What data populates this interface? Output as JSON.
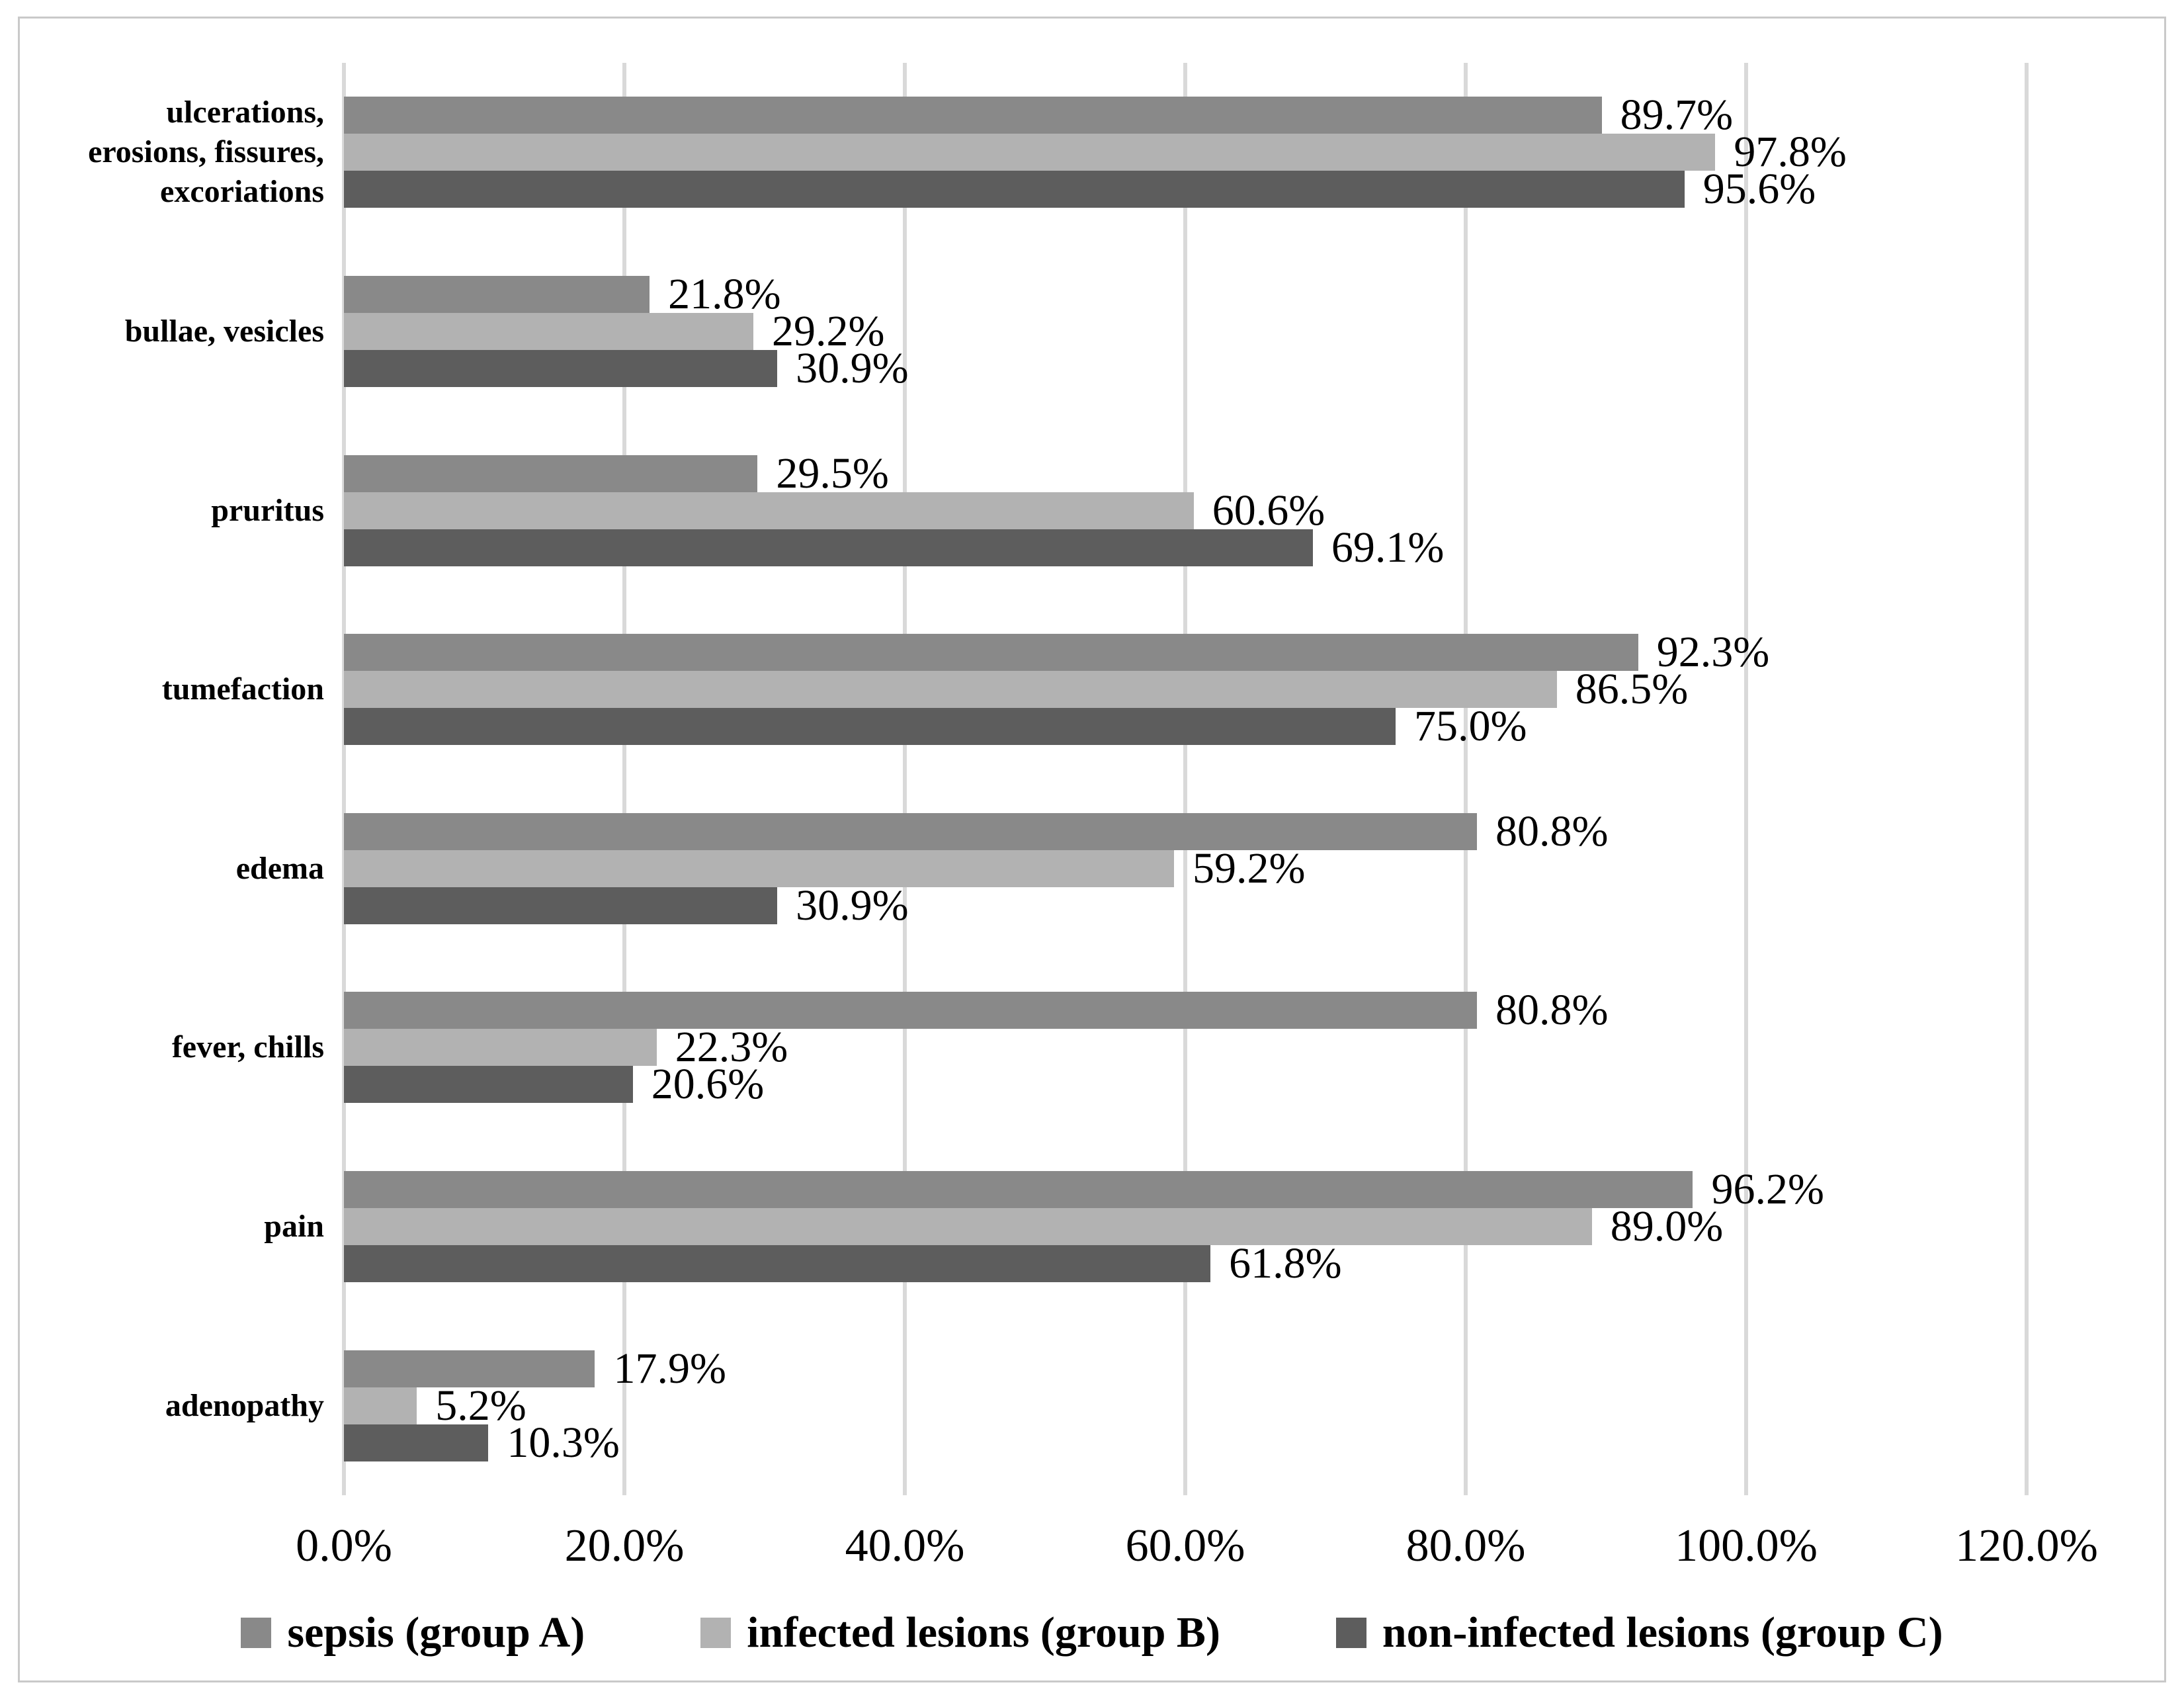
{
  "figure": {
    "background": "#ffffff",
    "border_color": "#c9c9c9"
  },
  "chart_data": {
    "type": "bar",
    "orientation": "horizontal",
    "title": "",
    "xlabel": "",
    "ylabel": "",
    "xlim": [
      0,
      120
    ],
    "grid": "vertical",
    "gridline_color": "#d9d9d9",
    "legend_position": "bottom",
    "categories": [
      "ulcerations,\nerosions, fissures,\nexcoriations",
      "bullae, vesicles",
      "pruritus",
      "tumefaction",
      "edema",
      "fever, chills",
      "pain",
      "adenopathy"
    ],
    "series": [
      {
        "name": "sepsis (group A)",
        "color": "#898989",
        "values": [
          89.7,
          21.8,
          29.5,
          92.3,
          80.8,
          80.8,
          96.2,
          17.9
        ],
        "labels": [
          "89.7%",
          "21.8%",
          "29.5%",
          "92.3%",
          "80.8%",
          "80.8%",
          "96.2%",
          "17.9%"
        ]
      },
      {
        "name": "infected lesions (group B)",
        "color": "#b2b2b2",
        "values": [
          97.8,
          29.2,
          60.6,
          86.5,
          59.2,
          22.3,
          89.0,
          5.2
        ],
        "labels": [
          "97.8%",
          "29.2%",
          "60.6%",
          "86.5%",
          "59.2%",
          "22.3%",
          "89.0%",
          "5.2%"
        ]
      },
      {
        "name": "non-infected lesions (group C)",
        "color": "#5d5d5d",
        "values": [
          95.6,
          30.9,
          69.1,
          75.0,
          30.9,
          20.6,
          61.8,
          10.3
        ],
        "labels": [
          "95.6%",
          "30.9%",
          "69.1%",
          "75.0%",
          "30.9%",
          "20.6%",
          "61.8%",
          "10.3%"
        ]
      }
    ],
    "xticks": [
      {
        "value": 0,
        "label": "0.0%"
      },
      {
        "value": 20,
        "label": "20.0%"
      },
      {
        "value": 40,
        "label": "40.0%"
      },
      {
        "value": 60,
        "label": "60.0%"
      },
      {
        "value": 80,
        "label": "80.0%"
      },
      {
        "value": 100,
        "label": "100.0%"
      },
      {
        "value": 120,
        "label": "120.0%"
      }
    ]
  }
}
